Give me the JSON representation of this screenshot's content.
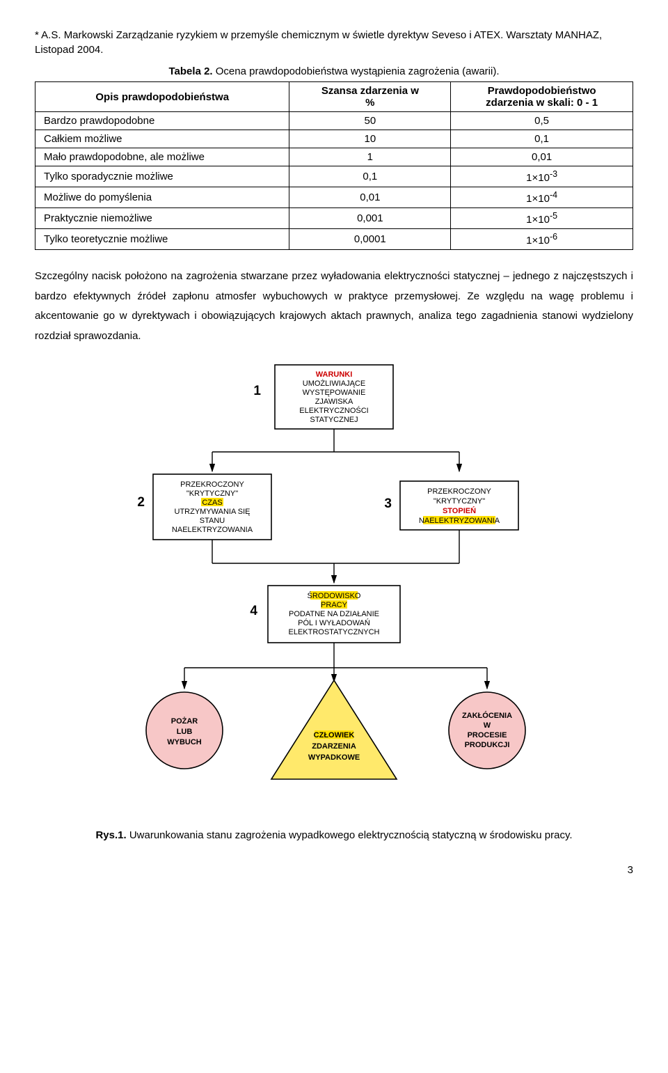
{
  "header": "* A.S. Markowski Zarządzanie ryzykiem w przemyśle chemicznym w świetle dyrektyw Seveso i ATEX. Warsztaty MANHAZ, Listopad 2004.",
  "tableCaptionBold": "Tabela 2.",
  "tableCaptionRest": " Ocena prawdopodobieństwa wystąpienia zagrożenia (awarii).",
  "table": {
    "head": {
      "c1": "Opis prawdopodobieństwa",
      "c2a": "Szansa zdarzenia w",
      "c2b": "%",
      "c3a": "Prawdopodobieństwo",
      "c3b": "zdarzenia w skali: 0 - 1"
    },
    "rows": [
      {
        "d": "Bardzo prawdopodobne",
        "p": "50",
        "v": "0,5",
        "sup": ""
      },
      {
        "d": "Całkiem możliwe",
        "p": "10",
        "v": "0,1",
        "sup": ""
      },
      {
        "d": "Mało prawdopodobne, ale możliwe",
        "p": "1",
        "v": "0,01",
        "sup": ""
      },
      {
        "d": "Tylko sporadycznie możliwe",
        "p": "0,1",
        "v": "1×10",
        "sup": "-3"
      },
      {
        "d": "Możliwe do pomyślenia",
        "p": "0,01",
        "v": "1×10",
        "sup": "-4"
      },
      {
        "d": "Praktycznie niemożliwe",
        "p": "0,001",
        "v": "1×10",
        "sup": "-5"
      },
      {
        "d": "Tylko teoretycznie możliwe",
        "p": "0,0001",
        "v": "1×10",
        "sup": "-6"
      }
    ]
  },
  "paragraph": "Szczególny nacisk położono na zagrożenia stwarzane przez wyładowania elektryczności statycznej – jednego z najczęstszych i bardzo efektywnych źródeł zapłonu atmosfer wybuchowych w praktyce przemysłowej. Ze względu na wagę problemu i akcentowanie go w dyrektywach i obowiązujących krajowych aktach prawnych, analiza tego zagadnienia stanowi wydzielony rozdział sprawozdania.",
  "diagram": {
    "nodes": {
      "n1": {
        "num": "1",
        "lines": [
          "WARUNKI",
          "UMOŻLIWIAJĄCE",
          "WYSTĘPOWANIE",
          "ZJAWISKA",
          "ELEKTRYCZNOŚCI",
          "STATYCZNEJ"
        ],
        "redLines": [
          0
        ],
        "hiLines": []
      },
      "n2": {
        "num": "2",
        "lines": [
          "PRZEKROCZONY",
          "\"KRYTYCZNY\"",
          "CZAS",
          "UTRZYMYWANIA SIĘ",
          "STANU",
          "NAELEKTRYZOWANIA"
        ],
        "redLines": [],
        "hiLines": [
          2
        ]
      },
      "n3": {
        "num": "3",
        "lines": [
          "PRZEKROCZONY",
          "\"KRYTYCZNY\"",
          "STOPIEŃ",
          "NAELEKTRYZOWANIA"
        ],
        "redLines": [
          2
        ],
        "hiLines": [
          3
        ]
      },
      "n4": {
        "num": "4",
        "lines": [
          "ŚRODOWISKO",
          "PRACY",
          "PODATNE NA DZIAŁANIE",
          "PÓL I WYŁADOWAŃ",
          "ELEKTROSTATYCZNYCH"
        ],
        "redLines": [],
        "hiLines": [
          0,
          1
        ]
      },
      "tri": {
        "lines": [
          "CZŁOWIEK",
          "ZDARZENIA",
          "WYPADKOWE"
        ],
        "hiLines": [
          0
        ]
      },
      "c1": {
        "lines": [
          "POŻAR",
          "LUB",
          "WYBUCH"
        ]
      },
      "c2": {
        "lines": [
          "ZAKŁÓCENIA",
          "W",
          "PROCESIE",
          "PRODUKCJI"
        ]
      }
    }
  },
  "figCaptionBold": "Rys.1.",
  "figCaptionRest": " Uwarunkowania stanu zagrożenia wypadkowego elektrycznością statyczną w środowisku pracy.",
  "pageNumber": "3"
}
